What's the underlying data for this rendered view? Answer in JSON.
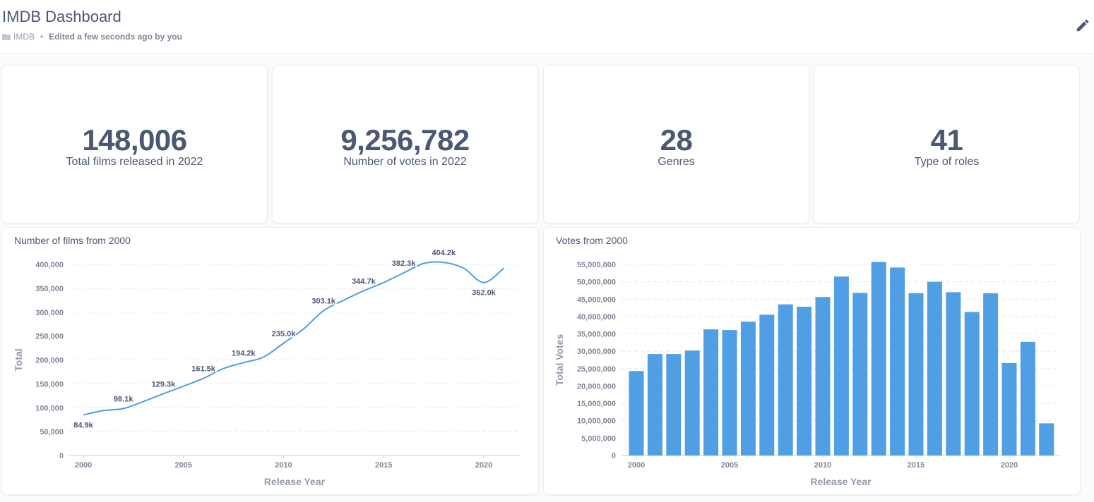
{
  "dashboard": {
    "title": "IMDB Dashboard",
    "collection": "IMDB",
    "separator": "•",
    "edited": "Edited a few seconds ago by you"
  },
  "scalars": [
    {
      "value": "148,006",
      "label": "Total films released in 2022"
    },
    {
      "value": "9,256,782",
      "label": "Number of votes in 2022"
    },
    {
      "value": "28",
      "label": "Genres"
    },
    {
      "value": "41",
      "label": "Type of roles"
    }
  ],
  "colors": {
    "accent": "#509ee3",
    "text": "#4c5773",
    "axis": "#949aab"
  },
  "chart_data": [
    {
      "type": "line",
      "title": "Number of films from 2000",
      "xlabel": "Release Year",
      "ylabel": "Total",
      "x": [
        2000,
        2001,
        2002,
        2003,
        2004,
        2005,
        2006,
        2007,
        2008,
        2009,
        2010,
        2011,
        2012,
        2013,
        2014,
        2015,
        2016,
        2017,
        2018,
        2019,
        2020,
        2021
      ],
      "values": [
        84900,
        94000,
        98100,
        113000,
        129300,
        145000,
        161500,
        182000,
        194200,
        206000,
        235000,
        265000,
        303100,
        325000,
        344700,
        362000,
        382300,
        402000,
        404200,
        392000,
        362000,
        392000
      ],
      "data_labels": [
        {
          "x": 2000,
          "text": "84.9k"
        },
        {
          "x": 2002,
          "text": "98.1k"
        },
        {
          "x": 2004,
          "text": "129.3k"
        },
        {
          "x": 2006,
          "text": "161.5k"
        },
        {
          "x": 2008,
          "text": "194.2k"
        },
        {
          "x": 2010,
          "text": "235.0k"
        },
        {
          "x": 2012,
          "text": "303.1k"
        },
        {
          "x": 2014,
          "text": "344.7k"
        },
        {
          "x": 2016,
          "text": "382.3k"
        },
        {
          "x": 2018,
          "text": "404.2k"
        },
        {
          "x": 2020,
          "text": "362.0k"
        }
      ],
      "ylim": [
        0,
        400000
      ],
      "yticks": [
        0,
        50000,
        100000,
        150000,
        200000,
        250000,
        300000,
        350000,
        400000
      ],
      "ytick_labels": [
        "0",
        "50,000",
        "100,000",
        "150,000",
        "200,000",
        "250,000",
        "300,000",
        "350,000",
        "400,000"
      ],
      "xticks": [
        2000,
        2005,
        2010,
        2015,
        2020
      ],
      "xtick_labels": [
        "2000",
        "2005",
        "2010",
        "2015",
        "2020"
      ],
      "grid": true
    },
    {
      "type": "bar",
      "title": "Votes from 2000",
      "xlabel": "Release Year",
      "ylabel": "Total Votes",
      "x": [
        2000,
        2001,
        2002,
        2003,
        2004,
        2005,
        2006,
        2007,
        2008,
        2009,
        2010,
        2011,
        2012,
        2013,
        2014,
        2015,
        2016,
        2017,
        2018,
        2019,
        2020,
        2021,
        2022
      ],
      "values": [
        24300000,
        29200000,
        29200000,
        30200000,
        36300000,
        36100000,
        38500000,
        40500000,
        43500000,
        42800000,
        45600000,
        51500000,
        46800000,
        55700000,
        54100000,
        46700000,
        50000000,
        47000000,
        41300000,
        46700000,
        26600000,
        32700000,
        9256782
      ],
      "ylim": [
        0,
        55000000
      ],
      "yticks": [
        0,
        5000000,
        10000000,
        15000000,
        20000000,
        25000000,
        30000000,
        35000000,
        40000000,
        45000000,
        50000000,
        55000000
      ],
      "ytick_labels": [
        "0",
        "5,000,000",
        "10,000,000",
        "15,000,000",
        "20,000,000",
        "25,000,000",
        "30,000,000",
        "35,000,000",
        "40,000,000",
        "45,000,000",
        "50,000,000",
        "55,000,000"
      ],
      "xticks": [
        2000,
        2005,
        2010,
        2015,
        2020
      ],
      "xtick_labels": [
        "2000",
        "2005",
        "2010",
        "2015",
        "2020"
      ],
      "grid": true
    }
  ]
}
